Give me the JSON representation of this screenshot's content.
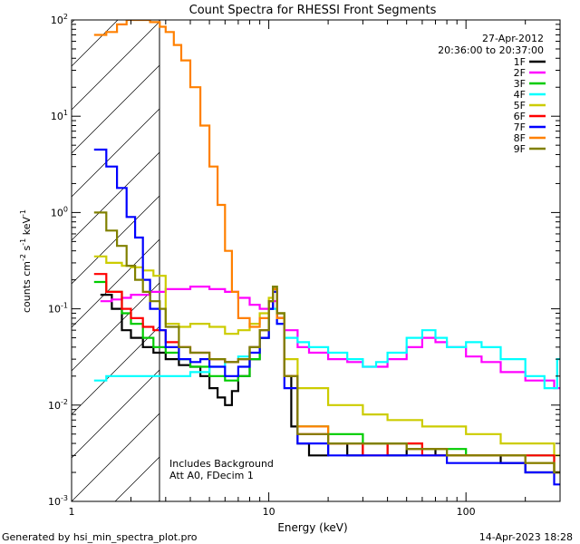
{
  "chart_data": {
    "type": "line",
    "title": "Count Spectra for RHESSI Front Segments",
    "xlabel": "Energy (keV)",
    "ylabel_parts": {
      "a": "counts cm",
      "b": "-2",
      "c": " s",
      "d": "-1",
      "e": " keV",
      "f": "-1"
    },
    "x_scale": "log",
    "y_scale": "log",
    "xlim": [
      1,
      300
    ],
    "ylim": [
      0.001,
      100
    ],
    "x_ticks": [
      {
        "v": 1,
        "label": "1"
      },
      {
        "v": 10,
        "label": "10"
      },
      {
        "v": 100,
        "label": "100"
      }
    ],
    "y_ticks": [
      {
        "v": 0.001,
        "base": "10",
        "exp": "-3"
      },
      {
        "v": 0.01,
        "base": "10",
        "exp": "-2"
      },
      {
        "v": 0.1,
        "base": "10",
        "exp": "-1"
      },
      {
        "v": 1,
        "base": "10",
        "exp": "0"
      },
      {
        "v": 10,
        "base": "10",
        "exp": "1"
      },
      {
        "v": 100,
        "base": "10",
        "exp": "2"
      }
    ],
    "hatched_region_x": [
      1,
      3
    ],
    "legend_position": "top-right",
    "annotations": {
      "date": "27-Apr-2012",
      "time_range": "20:36:00 to 20:37:00",
      "background_note": "Includes Background",
      "atten_note": "Att A0, FDecim 1"
    },
    "series": [
      {
        "name": "1F",
        "color": "#000000",
        "points": [
          [
            1.4,
            0.14
          ],
          [
            1.6,
            0.1
          ],
          [
            1.8,
            0.06
          ],
          [
            2.0,
            0.05
          ],
          [
            2.3,
            0.04
          ],
          [
            2.6,
            0.035
          ],
          [
            3.0,
            0.03
          ],
          [
            3.5,
            0.026
          ],
          [
            4.0,
            0.025
          ],
          [
            4.5,
            0.02
          ],
          [
            5.0,
            0.015
          ],
          [
            5.5,
            0.012
          ],
          [
            6.0,
            0.01
          ],
          [
            6.5,
            0.014
          ],
          [
            7.0,
            0.02
          ],
          [
            8.0,
            0.03
          ],
          [
            9.0,
            0.05
          ],
          [
            10.0,
            0.1
          ],
          [
            10.5,
            0.15
          ],
          [
            11.0,
            0.08
          ],
          [
            12.0,
            0.02
          ],
          [
            13.0,
            0.006
          ],
          [
            14.0,
            0.004
          ],
          [
            16.0,
            0.003
          ],
          [
            20.0,
            0.004
          ],
          [
            25.0,
            0.003
          ],
          [
            30.0,
            0.004
          ],
          [
            40.0,
            0.003
          ],
          [
            50.0,
            0.0035
          ],
          [
            70.0,
            0.003
          ],
          [
            100.0,
            0.003
          ],
          [
            150.0,
            0.0025
          ],
          [
            200.0,
            0.002
          ],
          [
            280.0,
            0.002
          ]
        ]
      },
      {
        "name": "2F",
        "color": "#ff00ff",
        "points": [
          [
            1.4,
            0.12
          ],
          [
            1.6,
            0.125
          ],
          [
            1.8,
            0.13
          ],
          [
            2.0,
            0.14
          ],
          [
            2.5,
            0.15
          ],
          [
            3.0,
            0.16
          ],
          [
            4.0,
            0.17
          ],
          [
            5.0,
            0.16
          ],
          [
            6.0,
            0.15
          ],
          [
            7.0,
            0.13
          ],
          [
            8.0,
            0.11
          ],
          [
            9.0,
            0.1
          ],
          [
            10.0,
            0.12
          ],
          [
            11.0,
            0.09
          ],
          [
            12.0,
            0.06
          ],
          [
            14.0,
            0.04
          ],
          [
            16.0,
            0.035
          ],
          [
            20.0,
            0.03
          ],
          [
            25.0,
            0.028
          ],
          [
            30.0,
            0.025
          ],
          [
            40.0,
            0.03
          ],
          [
            50.0,
            0.04
          ],
          [
            60.0,
            0.05
          ],
          [
            70.0,
            0.045
          ],
          [
            80.0,
            0.04
          ],
          [
            100.0,
            0.032
          ],
          [
            120.0,
            0.028
          ],
          [
            150.0,
            0.022
          ],
          [
            200.0,
            0.018
          ],
          [
            280.0,
            0.015
          ]
        ]
      },
      {
        "name": "3F",
        "color": "#00cc00",
        "points": [
          [
            1.3,
            0.19
          ],
          [
            1.5,
            0.15
          ],
          [
            1.8,
            0.09
          ],
          [
            2.0,
            0.07
          ],
          [
            2.3,
            0.05
          ],
          [
            2.6,
            0.04
          ],
          [
            3.0,
            0.035
          ],
          [
            3.5,
            0.03
          ],
          [
            4.0,
            0.025
          ],
          [
            5.0,
            0.02
          ],
          [
            6.0,
            0.018
          ],
          [
            7.0,
            0.02
          ],
          [
            8.0,
            0.03
          ],
          [
            9.0,
            0.05
          ],
          [
            10.0,
            0.12
          ],
          [
            10.5,
            0.17
          ],
          [
            11.0,
            0.09
          ],
          [
            12.0,
            0.02
          ],
          [
            14.0,
            0.006
          ],
          [
            20.0,
            0.005
          ],
          [
            30.0,
            0.004
          ],
          [
            40.0,
            0.004
          ],
          [
            60.0,
            0.0035
          ],
          [
            100.0,
            0.003
          ],
          [
            150.0,
            0.003
          ],
          [
            280.0,
            0.002
          ]
        ]
      },
      {
        "name": "4F",
        "color": "#00ffff",
        "points": [
          [
            1.3,
            0.018
          ],
          [
            1.5,
            0.02
          ],
          [
            1.8,
            0.02
          ],
          [
            2.0,
            0.02
          ],
          [
            2.5,
            0.02
          ],
          [
            3.0,
            0.02
          ],
          [
            4.0,
            0.022
          ],
          [
            5.0,
            0.025
          ],
          [
            6.0,
            0.028
          ],
          [
            7.0,
            0.032
          ],
          [
            8.0,
            0.04
          ],
          [
            9.0,
            0.06
          ],
          [
            10.0,
            0.1
          ],
          [
            11.0,
            0.07
          ],
          [
            12.0,
            0.05
          ],
          [
            14.0,
            0.045
          ],
          [
            16.0,
            0.04
          ],
          [
            20.0,
            0.035
          ],
          [
            25.0,
            0.03
          ],
          [
            30.0,
            0.025
          ],
          [
            35.0,
            0.028
          ],
          [
            40.0,
            0.035
          ],
          [
            50.0,
            0.05
          ],
          [
            60.0,
            0.06
          ],
          [
            70.0,
            0.05
          ],
          [
            80.0,
            0.04
          ],
          [
            100.0,
            0.045
          ],
          [
            120.0,
            0.04
          ],
          [
            150.0,
            0.03
          ],
          [
            200.0,
            0.02
          ],
          [
            250.0,
            0.015
          ],
          [
            290.0,
            0.03
          ]
        ]
      },
      {
        "name": "5F",
        "color": "#cccc00",
        "points": [
          [
            1.3,
            0.35
          ],
          [
            1.5,
            0.3
          ],
          [
            1.8,
            0.28
          ],
          [
            2.0,
            0.27
          ],
          [
            2.3,
            0.25
          ],
          [
            2.6,
            0.22
          ],
          [
            3.0,
            0.07
          ],
          [
            3.5,
            0.065
          ],
          [
            4.0,
            0.07
          ],
          [
            5.0,
            0.065
          ],
          [
            6.0,
            0.055
          ],
          [
            7.0,
            0.06
          ],
          [
            8.0,
            0.07
          ],
          [
            9.0,
            0.09
          ],
          [
            10.0,
            0.13
          ],
          [
            10.5,
            0.16
          ],
          [
            11.0,
            0.09
          ],
          [
            12.0,
            0.03
          ],
          [
            14.0,
            0.015
          ],
          [
            20.0,
            0.01
          ],
          [
            30.0,
            0.008
          ],
          [
            40.0,
            0.007
          ],
          [
            60.0,
            0.006
          ],
          [
            100.0,
            0.005
          ],
          [
            150.0,
            0.004
          ],
          [
            280.0,
            0.003
          ]
        ]
      },
      {
        "name": "6F",
        "color": "#ff0000",
        "points": [
          [
            1.3,
            0.23
          ],
          [
            1.5,
            0.15
          ],
          [
            1.8,
            0.1
          ],
          [
            2.0,
            0.08
          ],
          [
            2.3,
            0.065
          ],
          [
            2.6,
            0.06
          ],
          [
            3.0,
            0.045
          ],
          [
            3.5,
            0.04
          ],
          [
            4.0,
            0.035
          ],
          [
            5.0,
            0.03
          ],
          [
            6.0,
            0.028
          ],
          [
            7.0,
            0.03
          ],
          [
            8.0,
            0.04
          ],
          [
            9.0,
            0.06
          ],
          [
            10.0,
            0.12
          ],
          [
            10.5,
            0.16
          ],
          [
            11.0,
            0.08
          ],
          [
            12.0,
            0.02
          ],
          [
            14.0,
            0.005
          ],
          [
            20.0,
            0.004
          ],
          [
            30.0,
            0.003
          ],
          [
            40.0,
            0.004
          ],
          [
            60.0,
            0.003
          ],
          [
            100.0,
            0.003
          ],
          [
            150.0,
            0.003
          ],
          [
            280.0,
            0.002
          ]
        ]
      },
      {
        "name": "7F",
        "color": "#0000ff",
        "points": [
          [
            1.3,
            4.5
          ],
          [
            1.5,
            3.0
          ],
          [
            1.7,
            1.8
          ],
          [
            1.9,
            0.9
          ],
          [
            2.1,
            0.55
          ],
          [
            2.3,
            0.2
          ],
          [
            2.5,
            0.1
          ],
          [
            2.8,
            0.06
          ],
          [
            3.0,
            0.04
          ],
          [
            3.5,
            0.03
          ],
          [
            4.0,
            0.028
          ],
          [
            4.5,
            0.03
          ],
          [
            5.0,
            0.025
          ],
          [
            6.0,
            0.02
          ],
          [
            7.0,
            0.025
          ],
          [
            8.0,
            0.035
          ],
          [
            9.0,
            0.05
          ],
          [
            10.0,
            0.1
          ],
          [
            10.5,
            0.15
          ],
          [
            11.0,
            0.07
          ],
          [
            12.0,
            0.015
          ],
          [
            14.0,
            0.004
          ],
          [
            20.0,
            0.003
          ],
          [
            30.0,
            0.003
          ],
          [
            50.0,
            0.003
          ],
          [
            80.0,
            0.0025
          ],
          [
            120.0,
            0.0025
          ],
          [
            200.0,
            0.002
          ],
          [
            280.0,
            0.0015
          ]
        ]
      },
      {
        "name": "8F",
        "color": "#ff8000",
        "points": [
          [
            1.3,
            70
          ],
          [
            1.5,
            75
          ],
          [
            1.7,
            90
          ],
          [
            1.9,
            100
          ],
          [
            2.2,
            100
          ],
          [
            2.5,
            95
          ],
          [
            2.8,
            85
          ],
          [
            3.0,
            75
          ],
          [
            3.3,
            55
          ],
          [
            3.6,
            38
          ],
          [
            4.0,
            20
          ],
          [
            4.5,
            8
          ],
          [
            5.0,
            3.0
          ],
          [
            5.5,
            1.2
          ],
          [
            6.0,
            0.4
          ],
          [
            6.5,
            0.15
          ],
          [
            7.0,
            0.08
          ],
          [
            8.0,
            0.065
          ],
          [
            9.0,
            0.08
          ],
          [
            10.0,
            0.12
          ],
          [
            10.5,
            0.16
          ],
          [
            11.0,
            0.08
          ],
          [
            12.0,
            0.02
          ],
          [
            14.0,
            0.006
          ],
          [
            20.0,
            0.004
          ],
          [
            30.0,
            0.004
          ],
          [
            50.0,
            0.0035
          ],
          [
            80.0,
            0.003
          ],
          [
            120.0,
            0.003
          ],
          [
            200.0,
            0.0025
          ],
          [
            280.0,
            0.002
          ]
        ]
      },
      {
        "name": "9F",
        "color": "#808000",
        "points": [
          [
            1.3,
            1.0
          ],
          [
            1.5,
            0.65
          ],
          [
            1.7,
            0.45
          ],
          [
            1.9,
            0.28
          ],
          [
            2.1,
            0.2
          ],
          [
            2.3,
            0.15
          ],
          [
            2.5,
            0.12
          ],
          [
            2.8,
            0.1
          ],
          [
            3.0,
            0.065
          ],
          [
            3.5,
            0.04
          ],
          [
            4.0,
            0.035
          ],
          [
            5.0,
            0.03
          ],
          [
            6.0,
            0.028
          ],
          [
            7.0,
            0.03
          ],
          [
            8.0,
            0.04
          ],
          [
            9.0,
            0.06
          ],
          [
            10.0,
            0.12
          ],
          [
            10.5,
            0.17
          ],
          [
            11.0,
            0.09
          ],
          [
            12.0,
            0.02
          ],
          [
            14.0,
            0.005
          ],
          [
            20.0,
            0.004
          ],
          [
            30.0,
            0.004
          ],
          [
            50.0,
            0.0035
          ],
          [
            80.0,
            0.003
          ],
          [
            120.0,
            0.003
          ],
          [
            200.0,
            0.0025
          ],
          [
            280.0,
            0.002
          ]
        ]
      }
    ]
  },
  "footer": {
    "generated_by": "Generated by hsi_min_spectra_plot.pro",
    "timestamp": "14-Apr-2023 18:28"
  }
}
